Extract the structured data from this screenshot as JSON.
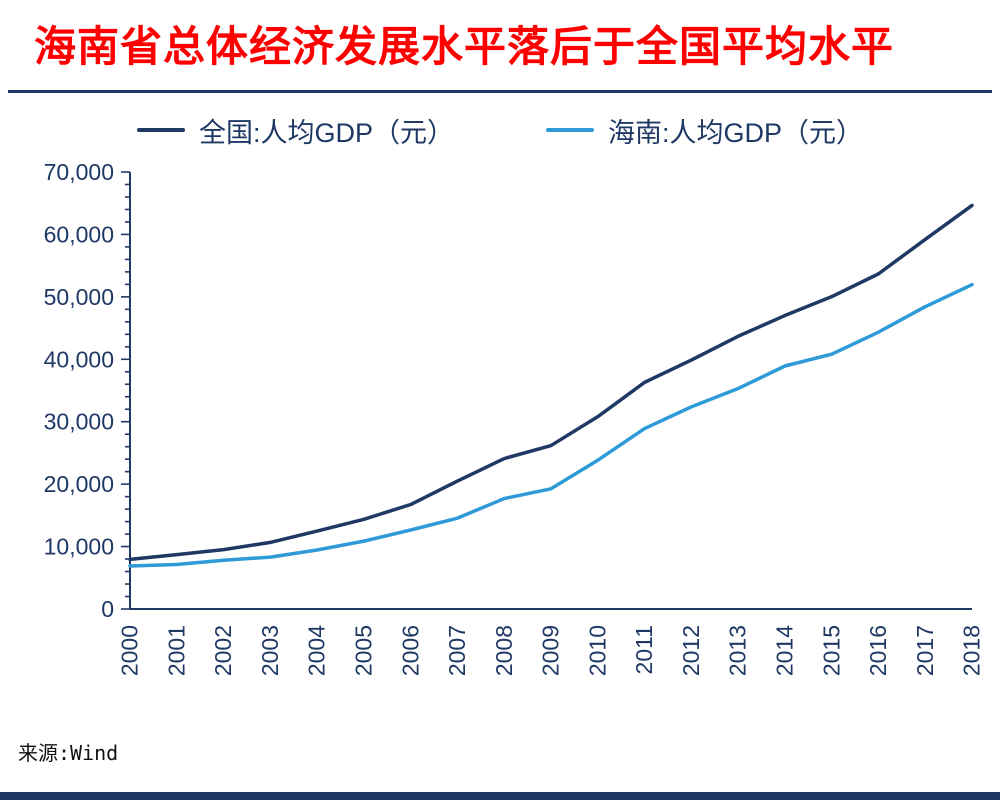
{
  "header": {
    "title": "海南省总体经济发展水平落后于全国平均水平"
  },
  "legend": [
    {
      "label": "全国:人均GDP（元）",
      "color": "#1f3864"
    },
    {
      "label": "海南:人均GDP（元）",
      "color": "#2e9ad7"
    }
  ],
  "footer": {
    "source": "来源:Wind"
  },
  "colors": {
    "title": "#fe0000",
    "axis": "#1f3864",
    "divider": "#1f3864",
    "national_line": "#1f3864",
    "hainan_line": "#2e9ad7"
  },
  "chart_data": {
    "type": "line",
    "x": [
      "2000",
      "2001",
      "2002",
      "2003",
      "2004",
      "2005",
      "2006",
      "2007",
      "2008",
      "2009",
      "2010",
      "2011",
      "2012",
      "2013",
      "2014",
      "2015",
      "2016",
      "2017",
      "2018"
    ],
    "series": [
      {
        "name": "全国:人均GDP（元）",
        "color": "#1f3864",
        "values": [
          7942,
          8717,
          9506,
          10666,
          12487,
          14368,
          16738,
          20494,
          24100,
          26180,
          30808,
          36302,
          39874,
          43684,
          47005,
          50028,
          53680,
          59201,
          64644
        ]
      },
      {
        "name": "海南:人均GDP（元）",
        "color": "#2e9ad7",
        "values": [
          6894,
          7135,
          7803,
          8316,
          9450,
          10871,
          12654,
          14555,
          17691,
          19254,
          23831,
          28898,
          32377,
          35317,
          38924,
          40818,
          44347,
          48430,
          51955
        ]
      }
    ],
    "title": "海南省总体经济发展水平落后于全国平均水平",
    "xlabel": "",
    "ylabel": "",
    "ylim": [
      0,
      70000
    ],
    "ytick_major": 10000,
    "ytick_minor": 2000,
    "grid": false,
    "legend_position": "top"
  }
}
